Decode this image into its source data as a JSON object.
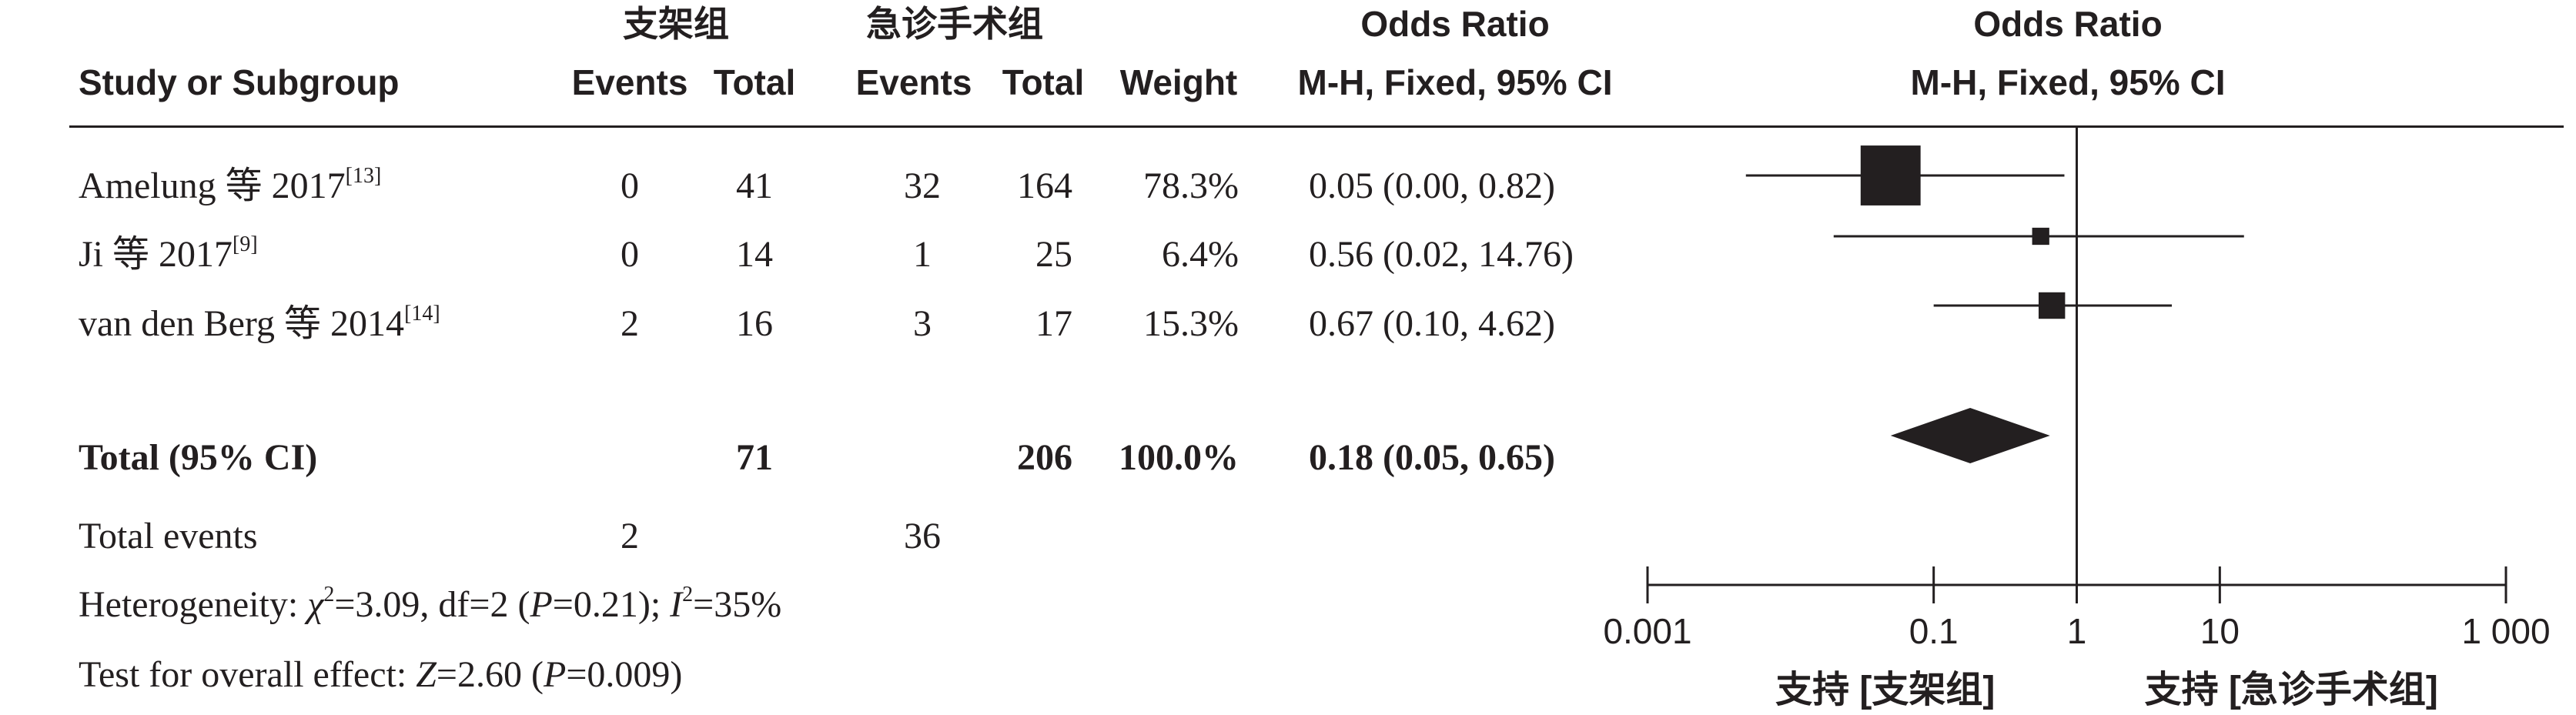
{
  "header": {
    "group1_name": "支架组",
    "group2_name": "急诊手术组",
    "study_col": "Study or Subgroup",
    "events_col": "Events",
    "total_col": "Total",
    "weight_col": "Weight",
    "or_title": "Odds Ratio",
    "or_method": "M-H, Fixed, 95% CI",
    "plot_title": "Odds Ratio",
    "plot_method": "M-H, Fixed, 95% CI"
  },
  "rows": [
    {
      "study": "Amelung 等 2017",
      "ref": "[13]",
      "e1": "0",
      "t1": "41",
      "e2": "32",
      "t2": "164",
      "weight": "78.3%",
      "ci": "0.05 (0.00, 0.82)"
    },
    {
      "study": "Ji 等 2017",
      "ref": "[9]",
      "e1": "0",
      "t1": "14",
      "e2": "1",
      "t2": "25",
      "weight": "6.4%",
      "ci": "0.56 (0.02, 14.76)"
    },
    {
      "study": "van den Berg 等 2014",
      "ref": "[14]",
      "e1": "2",
      "t1": "16",
      "e2": "3",
      "t2": "17",
      "weight": "15.3%",
      "ci": "0.67 (0.10, 4.62)"
    }
  ],
  "total": {
    "label": "Total (95% CI)",
    "t1": "71",
    "t2": "206",
    "weight": "100.0%",
    "ci": "0.18 (0.05, 0.65)"
  },
  "events": {
    "label": "Total events",
    "e1": "2",
    "e2": "36"
  },
  "heterogeneity": {
    "prefix": "Heterogeneity: ",
    "chi": "χ",
    "chi_sup": "2",
    "chi_val": "=3.09, df=2 (",
    "p": "P",
    "p_val": "=0.21); ",
    "i": "I",
    "i_sup": "2",
    "i_val": "=35%"
  },
  "overall": {
    "prefix": "Test for overall effect: ",
    "z": "Z",
    "z_val": "=2.60 (",
    "p": "P",
    "p_val": "=0.009)"
  },
  "axis": {
    "favours_left": "支持 [支架组]",
    "favours_right": "支持 [急诊手术组]"
  },
  "chart_data": {
    "type": "forest",
    "xscale": "log",
    "xlim": [
      0.001,
      1000
    ],
    "xticks": [
      0.001,
      0.1,
      1,
      10,
      1000
    ],
    "xtick_labels": [
      "0.001",
      "0.1",
      "1",
      "10",
      "1 000"
    ],
    "reference_line": 1,
    "studies": [
      {
        "name": "Amelung 等 2017",
        "or": 0.05,
        "lower": 0.0,
        "lower_drawn": 0.00487,
        "upper": 0.82,
        "weight": 78.3
      },
      {
        "name": "Ji 等 2017",
        "or": 0.56,
        "lower": 0.02,
        "upper": 14.76,
        "weight": 6.4
      },
      {
        "name": "van den Berg 等 2014",
        "or": 0.67,
        "lower": 0.1,
        "upper": 4.62,
        "weight": 15.3
      }
    ],
    "pooled": {
      "or": 0.18,
      "lower": 0.05,
      "upper": 0.65
    },
    "colors": {
      "ink": "#231f20"
    }
  }
}
